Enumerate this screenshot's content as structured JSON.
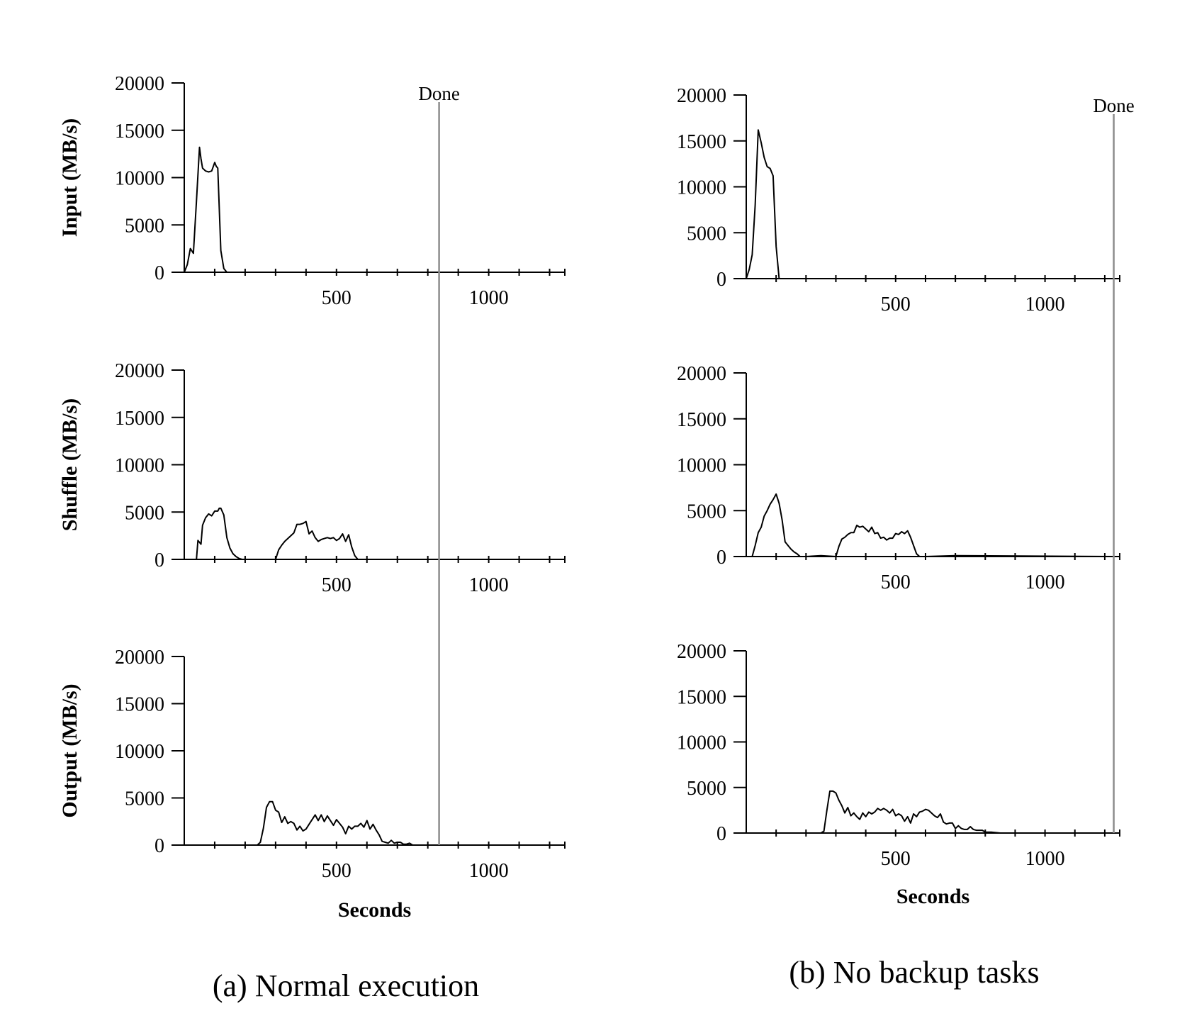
{
  "chart_data": [
    {
      "id": "a",
      "caption": "(a) Normal execution",
      "xlabel": "Seconds",
      "xlim": [
        0,
        1250
      ],
      "x_tick_labels": [
        500,
        1000
      ],
      "x_minor_ticks": [
        100,
        200,
        300,
        400,
        500,
        600,
        700,
        800,
        900,
        1000,
        1100,
        1200
      ],
      "done": {
        "label": "Done",
        "x": 837
      },
      "panels": [
        {
          "type": "line",
          "ylabel": "Input (MB/s)",
          "ylim": [
            0,
            20000
          ],
          "y_ticks": [
            0,
            5000,
            10000,
            15000,
            20000
          ],
          "x": [
            0,
            10,
            20,
            30,
            40,
            50,
            55,
            60,
            70,
            80,
            90,
            100,
            105,
            110,
            120,
            130,
            140,
            150,
            837
          ],
          "y": [
            0,
            800,
            2500,
            2000,
            7500,
            13200,
            12000,
            11000,
            10700,
            10600,
            10700,
            11600,
            11200,
            11000,
            2300,
            400,
            0,
            0,
            0
          ]
        },
        {
          "type": "line",
          "ylabel": "Shuffle (MB/s)",
          "ylim": [
            0,
            20000
          ],
          "y_ticks": [
            0,
            5000,
            10000,
            15000,
            20000
          ],
          "x": [
            0,
            30,
            40,
            45,
            55,
            60,
            70,
            80,
            90,
            100,
            110,
            115,
            120,
            130,
            140,
            150,
            160,
            170,
            180,
            190,
            200,
            210,
            220,
            250,
            300,
            310,
            320,
            330,
            340,
            350,
            360,
            370,
            380,
            390,
            400,
            410,
            420,
            430,
            440,
            450,
            460,
            470,
            480,
            490,
            500,
            510,
            520,
            530,
            540,
            550,
            560,
            570,
            580,
            590,
            600,
            650,
            700,
            837
          ],
          "y": [
            0,
            0,
            0,
            2000,
            1600,
            3600,
            4400,
            4800,
            4600,
            5100,
            5100,
            5400,
            5400,
            4700,
            2300,
            1200,
            600,
            300,
            100,
            0,
            0,
            0,
            0,
            0,
            0,
            1000,
            1500,
            1900,
            2200,
            2500,
            2800,
            3700,
            3700,
            3800,
            4000,
            2700,
            3000,
            2300,
            1900,
            2100,
            2200,
            2300,
            2200,
            2300,
            2000,
            2200,
            2700,
            1900,
            2600,
            1300,
            400,
            0,
            0,
            0,
            0,
            0,
            0,
            0
          ]
        },
        {
          "type": "line",
          "ylabel": "Output (MB/s)",
          "ylim": [
            0,
            20000
          ],
          "y_ticks": [
            0,
            5000,
            10000,
            15000,
            20000
          ],
          "x": [
            0,
            240,
            250,
            260,
            270,
            280,
            290,
            300,
            310,
            320,
            330,
            340,
            350,
            360,
            370,
            380,
            390,
            400,
            410,
            420,
            430,
            440,
            450,
            460,
            470,
            480,
            490,
            500,
            510,
            520,
            530,
            540,
            550,
            560,
            570,
            580,
            590,
            600,
            610,
            620,
            630,
            640,
            650,
            660,
            670,
            680,
            690,
            700,
            710,
            720,
            730,
            740,
            750,
            760,
            770,
            780,
            790,
            837
          ],
          "y": [
            0,
            0,
            300,
            1800,
            4000,
            4600,
            4600,
            3700,
            3500,
            2400,
            3000,
            2300,
            2500,
            2300,
            1600,
            2000,
            1500,
            1700,
            2200,
            2700,
            3200,
            2600,
            3200,
            2500,
            3100,
            2600,
            2100,
            2700,
            2300,
            1900,
            1200,
            2000,
            1700,
            2000,
            2000,
            2300,
            1900,
            2600,
            1700,
            2200,
            1600,
            1100,
            400,
            300,
            200,
            500,
            200,
            300,
            300,
            100,
            100,
            200,
            0,
            0,
            0,
            0,
            0,
            0
          ]
        }
      ]
    },
    {
      "id": "b",
      "caption": "(b) No backup tasks",
      "xlabel": "Seconds",
      "xlim": [
        0,
        1250
      ],
      "x_tick_labels": [
        500,
        1000
      ],
      "x_minor_ticks": [
        100,
        200,
        300,
        400,
        500,
        600,
        700,
        800,
        900,
        1000,
        1100,
        1200
      ],
      "done": {
        "label": "Done",
        "x": 1230
      },
      "panels": [
        {
          "type": "line",
          "ylabel": "",
          "ylim": [
            0,
            20000
          ],
          "y_ticks": [
            0,
            5000,
            10000,
            15000,
            20000
          ],
          "x": [
            0,
            10,
            20,
            30,
            40,
            50,
            60,
            70,
            80,
            90,
            100,
            110,
            120,
            1230
          ],
          "y": [
            0,
            1000,
            2600,
            8000,
            16200,
            14800,
            13200,
            12200,
            12000,
            11200,
            3500,
            0,
            0,
            0
          ]
        },
        {
          "type": "line",
          "ylabel": "",
          "ylim": [
            0,
            20000
          ],
          "y_ticks": [
            0,
            5000,
            10000,
            15000,
            20000
          ],
          "x": [
            0,
            20,
            30,
            40,
            50,
            60,
            70,
            80,
            90,
            100,
            110,
            120,
            130,
            140,
            150,
            160,
            170,
            180,
            190,
            200,
            250,
            300,
            310,
            320,
            330,
            340,
            350,
            360,
            370,
            380,
            390,
            400,
            410,
            420,
            430,
            440,
            450,
            460,
            470,
            480,
            490,
            500,
            510,
            520,
            530,
            540,
            550,
            560,
            570,
            580,
            590,
            600,
            700,
            1230
          ],
          "y": [
            0,
            0,
            1200,
            2600,
            3200,
            4400,
            5000,
            5700,
            6200,
            6800,
            5800,
            4000,
            1600,
            1200,
            800,
            500,
            300,
            0,
            0,
            0,
            100,
            0,
            1100,
            1900,
            2100,
            2400,
            2600,
            2600,
            3400,
            3200,
            3300,
            3000,
            2700,
            3200,
            2500,
            2600,
            2000,
            2100,
            1800,
            2000,
            2000,
            2500,
            2400,
            2700,
            2500,
            2800,
            2100,
            1200,
            300,
            0,
            0,
            0,
            100,
            0
          ]
        },
        {
          "type": "line",
          "ylabel": "",
          "ylim": [
            0,
            20000
          ],
          "y_ticks": [
            0,
            5000,
            10000,
            15000,
            20000
          ],
          "x": [
            0,
            250,
            260,
            270,
            280,
            290,
            300,
            310,
            320,
            330,
            340,
            350,
            360,
            370,
            380,
            390,
            400,
            410,
            420,
            430,
            440,
            450,
            460,
            470,
            480,
            490,
            500,
            510,
            520,
            530,
            540,
            550,
            560,
            570,
            580,
            590,
            600,
            610,
            620,
            630,
            640,
            650,
            660,
            670,
            680,
            690,
            700,
            710,
            720,
            730,
            740,
            750,
            760,
            770,
            780,
            790,
            800,
            820,
            850,
            1230
          ],
          "y": [
            0,
            0,
            200,
            2500,
            4600,
            4600,
            4400,
            3600,
            3000,
            2200,
            2800,
            1900,
            2200,
            1800,
            1500,
            2200,
            1800,
            2300,
            2100,
            2300,
            2700,
            2500,
            2700,
            2500,
            2200,
            2600,
            1900,
            2100,
            1900,
            1300,
            1800,
            1100,
            2100,
            1800,
            2300,
            2400,
            2600,
            2500,
            2200,
            1900,
            1700,
            2100,
            1200,
            1000,
            1100,
            1100,
            500,
            800,
            500,
            400,
            400,
            700,
            400,
            300,
            300,
            300,
            100,
            100,
            0,
            0
          ]
        }
      ]
    }
  ]
}
